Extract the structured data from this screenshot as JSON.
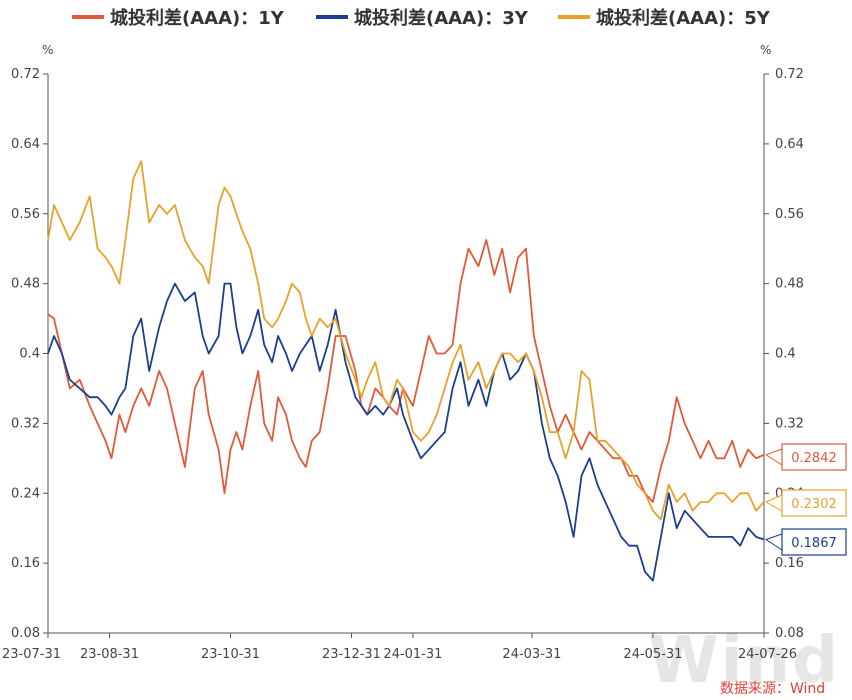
{
  "chart_data": {
    "type": "line",
    "title": "",
    "left_unit": "%",
    "right_unit": "%",
    "y_ticks": [
      "0.72",
      "0.64",
      "0.56",
      "0.48",
      "0.4",
      "0.32",
      "0.24",
      "0.16",
      "0.08"
    ],
    "ylim": [
      0.08,
      0.72
    ],
    "x_ticks": [
      "23-07-31",
      "23-08-31",
      "23-10-31",
      "23-12-31",
      "24-01-31",
      "24-03-31",
      "24-05-31",
      "24-07-26"
    ],
    "x_start": "2023-07-31",
    "x_end": "2024-07-26",
    "grid": false,
    "legend_position": "top",
    "series": [
      {
        "name": "城投利差(AAA)：1Y",
        "color": "#e05a3a",
        "end_label": "0.2842",
        "points": [
          [
            "2023-07-31",
            0.445
          ],
          [
            "2023-08-03",
            0.44
          ],
          [
            "2023-08-07",
            0.4
          ],
          [
            "2023-08-11",
            0.36
          ],
          [
            "2023-08-16",
            0.37
          ],
          [
            "2023-08-21",
            0.34
          ],
          [
            "2023-08-25",
            0.32
          ],
          [
            "2023-08-29",
            0.3
          ],
          [
            "2023-09-01",
            0.28
          ],
          [
            "2023-09-05",
            0.33
          ],
          [
            "2023-09-08",
            0.31
          ],
          [
            "2023-09-12",
            0.34
          ],
          [
            "2023-09-16",
            0.36
          ],
          [
            "2023-09-20",
            0.34
          ],
          [
            "2023-09-25",
            0.38
          ],
          [
            "2023-09-29",
            0.36
          ],
          [
            "2023-10-03",
            0.32
          ],
          [
            "2023-10-08",
            0.27
          ],
          [
            "2023-10-13",
            0.36
          ],
          [
            "2023-10-17",
            0.38
          ],
          [
            "2023-10-20",
            0.33
          ],
          [
            "2023-10-25",
            0.29
          ],
          [
            "2023-10-28",
            0.24
          ],
          [
            "2023-10-31",
            0.29
          ],
          [
            "2023-11-03",
            0.31
          ],
          [
            "2023-11-06",
            0.29
          ],
          [
            "2023-11-10",
            0.34
          ],
          [
            "2023-11-14",
            0.38
          ],
          [
            "2023-11-17",
            0.32
          ],
          [
            "2023-11-21",
            0.3
          ],
          [
            "2023-11-24",
            0.35
          ],
          [
            "2023-11-28",
            0.33
          ],
          [
            "2023-12-01",
            0.3
          ],
          [
            "2023-12-05",
            0.28
          ],
          [
            "2023-12-08",
            0.27
          ],
          [
            "2023-12-11",
            0.3
          ],
          [
            "2023-12-15",
            0.31
          ],
          [
            "2023-12-19",
            0.36
          ],
          [
            "2023-12-23",
            0.42
          ],
          [
            "2023-12-28",
            0.42
          ],
          [
            "2024-01-02",
            0.38
          ],
          [
            "2024-01-05",
            0.34
          ],
          [
            "2024-01-08",
            0.33
          ],
          [
            "2024-01-12",
            0.36
          ],
          [
            "2024-01-16",
            0.35
          ],
          [
            "2024-01-19",
            0.34
          ],
          [
            "2024-01-23",
            0.33
          ],
          [
            "2024-01-26",
            0.36
          ],
          [
            "2024-01-31",
            0.34
          ],
          [
            "2024-02-04",
            0.38
          ],
          [
            "2024-02-08",
            0.42
          ],
          [
            "2024-02-12",
            0.4
          ],
          [
            "2024-02-16",
            0.4
          ],
          [
            "2024-02-20",
            0.41
          ],
          [
            "2024-02-24",
            0.48
          ],
          [
            "2024-02-28",
            0.52
          ],
          [
            "2024-03-04",
            0.5
          ],
          [
            "2024-03-08",
            0.53
          ],
          [
            "2024-03-12",
            0.49
          ],
          [
            "2024-03-16",
            0.52
          ],
          [
            "2024-03-20",
            0.47
          ],
          [
            "2024-03-24",
            0.51
          ],
          [
            "2024-03-28",
            0.52
          ],
          [
            "2024-04-01",
            0.42
          ],
          [
            "2024-04-05",
            0.38
          ],
          [
            "2024-04-09",
            0.34
          ],
          [
            "2024-04-13",
            0.31
          ],
          [
            "2024-04-17",
            0.33
          ],
          [
            "2024-04-21",
            0.31
          ],
          [
            "2024-04-25",
            0.29
          ],
          [
            "2024-04-29",
            0.31
          ],
          [
            "2024-05-03",
            0.3
          ],
          [
            "2024-05-07",
            0.29
          ],
          [
            "2024-05-11",
            0.28
          ],
          [
            "2024-05-15",
            0.28
          ],
          [
            "2024-05-19",
            0.26
          ],
          [
            "2024-05-23",
            0.26
          ],
          [
            "2024-05-27",
            0.24
          ],
          [
            "2024-05-31",
            0.23
          ],
          [
            "2024-06-04",
            0.27
          ],
          [
            "2024-06-08",
            0.3
          ],
          [
            "2024-06-12",
            0.35
          ],
          [
            "2024-06-16",
            0.32
          ],
          [
            "2024-06-20",
            0.3
          ],
          [
            "2024-06-24",
            0.28
          ],
          [
            "2024-06-28",
            0.3
          ],
          [
            "2024-07-02",
            0.28
          ],
          [
            "2024-07-06",
            0.28
          ],
          [
            "2024-07-10",
            0.3
          ],
          [
            "2024-07-14",
            0.27
          ],
          [
            "2024-07-18",
            0.29
          ],
          [
            "2024-07-22",
            0.28
          ],
          [
            "2024-07-26",
            0.284
          ]
        ]
      },
      {
        "name": "城投利差(AAA)：3Y",
        "color": "#1a3f8c",
        "end_label": "0.1867",
        "points": [
          [
            "2023-07-31",
            0.4
          ],
          [
            "2023-08-03",
            0.42
          ],
          [
            "2023-08-07",
            0.4
          ],
          [
            "2023-08-11",
            0.37
          ],
          [
            "2023-08-16",
            0.36
          ],
          [
            "2023-08-21",
            0.35
          ],
          [
            "2023-08-25",
            0.35
          ],
          [
            "2023-08-29",
            0.34
          ],
          [
            "2023-09-01",
            0.33
          ],
          [
            "2023-09-05",
            0.35
          ],
          [
            "2023-09-08",
            0.36
          ],
          [
            "2023-09-12",
            0.42
          ],
          [
            "2023-09-16",
            0.44
          ],
          [
            "2023-09-20",
            0.38
          ],
          [
            "2023-09-25",
            0.43
          ],
          [
            "2023-09-29",
            0.46
          ],
          [
            "2023-10-03",
            0.48
          ],
          [
            "2023-10-08",
            0.46
          ],
          [
            "2023-10-13",
            0.47
          ],
          [
            "2023-10-17",
            0.42
          ],
          [
            "2023-10-20",
            0.4
          ],
          [
            "2023-10-25",
            0.42
          ],
          [
            "2023-10-28",
            0.48
          ],
          [
            "2023-10-31",
            0.48
          ],
          [
            "2023-11-03",
            0.43
          ],
          [
            "2023-11-06",
            0.4
          ],
          [
            "2023-11-10",
            0.42
          ],
          [
            "2023-11-14",
            0.45
          ],
          [
            "2023-11-17",
            0.41
          ],
          [
            "2023-11-21",
            0.39
          ],
          [
            "2023-11-24",
            0.42
          ],
          [
            "2023-11-28",
            0.4
          ],
          [
            "2023-12-01",
            0.38
          ],
          [
            "2023-12-05",
            0.4
          ],
          [
            "2023-12-08",
            0.41
          ],
          [
            "2023-12-11",
            0.42
          ],
          [
            "2023-12-15",
            0.38
          ],
          [
            "2023-12-19",
            0.41
          ],
          [
            "2023-12-23",
            0.45
          ],
          [
            "2023-12-28",
            0.39
          ],
          [
            "2024-01-02",
            0.35
          ],
          [
            "2024-01-05",
            0.34
          ],
          [
            "2024-01-08",
            0.33
          ],
          [
            "2024-01-12",
            0.34
          ],
          [
            "2024-01-16",
            0.33
          ],
          [
            "2024-01-19",
            0.34
          ],
          [
            "2024-01-23",
            0.36
          ],
          [
            "2024-01-26",
            0.33
          ],
          [
            "2024-01-31",
            0.3
          ],
          [
            "2024-02-04",
            0.28
          ],
          [
            "2024-02-08",
            0.29
          ],
          [
            "2024-02-12",
            0.3
          ],
          [
            "2024-02-16",
            0.31
          ],
          [
            "2024-02-20",
            0.36
          ],
          [
            "2024-02-24",
            0.39
          ],
          [
            "2024-02-28",
            0.34
          ],
          [
            "2024-03-04",
            0.37
          ],
          [
            "2024-03-08",
            0.34
          ],
          [
            "2024-03-12",
            0.38
          ],
          [
            "2024-03-16",
            0.4
          ],
          [
            "2024-03-20",
            0.37
          ],
          [
            "2024-03-24",
            0.38
          ],
          [
            "2024-03-28",
            0.4
          ],
          [
            "2024-04-01",
            0.38
          ],
          [
            "2024-04-05",
            0.32
          ],
          [
            "2024-04-09",
            0.28
          ],
          [
            "2024-04-13",
            0.26
          ],
          [
            "2024-04-17",
            0.23
          ],
          [
            "2024-04-21",
            0.19
          ],
          [
            "2024-04-25",
            0.26
          ],
          [
            "2024-04-29",
            0.28
          ],
          [
            "2024-05-03",
            0.25
          ],
          [
            "2024-05-07",
            0.23
          ],
          [
            "2024-05-11",
            0.21
          ],
          [
            "2024-05-15",
            0.19
          ],
          [
            "2024-05-19",
            0.18
          ],
          [
            "2024-05-23",
            0.18
          ],
          [
            "2024-05-27",
            0.15
          ],
          [
            "2024-05-31",
            0.14
          ],
          [
            "2024-06-04",
            0.19
          ],
          [
            "2024-06-08",
            0.24
          ],
          [
            "2024-06-12",
            0.2
          ],
          [
            "2024-06-16",
            0.22
          ],
          [
            "2024-06-20",
            0.21
          ],
          [
            "2024-06-24",
            0.2
          ],
          [
            "2024-06-28",
            0.19
          ],
          [
            "2024-07-02",
            0.19
          ],
          [
            "2024-07-06",
            0.19
          ],
          [
            "2024-07-10",
            0.19
          ],
          [
            "2024-07-14",
            0.18
          ],
          [
            "2024-07-18",
            0.2
          ],
          [
            "2024-07-22",
            0.19
          ],
          [
            "2024-07-26",
            0.187
          ]
        ]
      },
      {
        "name": "城投利差(AAA)：5Y",
        "color": "#e8a22a",
        "end_label": "0.2302",
        "points": [
          [
            "2023-07-31",
            0.53
          ],
          [
            "2023-08-03",
            0.57
          ],
          [
            "2023-08-07",
            0.55
          ],
          [
            "2023-08-11",
            0.53
          ],
          [
            "2023-08-16",
            0.55
          ],
          [
            "2023-08-21",
            0.58
          ],
          [
            "2023-08-25",
            0.52
          ],
          [
            "2023-08-29",
            0.51
          ],
          [
            "2023-09-01",
            0.5
          ],
          [
            "2023-09-05",
            0.48
          ],
          [
            "2023-09-08",
            0.53
          ],
          [
            "2023-09-12",
            0.6
          ],
          [
            "2023-09-16",
            0.62
          ],
          [
            "2023-09-20",
            0.55
          ],
          [
            "2023-09-25",
            0.57
          ],
          [
            "2023-09-29",
            0.56
          ],
          [
            "2023-10-03",
            0.57
          ],
          [
            "2023-10-08",
            0.53
          ],
          [
            "2023-10-13",
            0.51
          ],
          [
            "2023-10-17",
            0.5
          ],
          [
            "2023-10-20",
            0.48
          ],
          [
            "2023-10-25",
            0.57
          ],
          [
            "2023-10-28",
            0.59
          ],
          [
            "2023-10-31",
            0.58
          ],
          [
            "2023-11-03",
            0.56
          ],
          [
            "2023-11-06",
            0.54
          ],
          [
            "2023-11-10",
            0.52
          ],
          [
            "2023-11-14",
            0.48
          ],
          [
            "2023-11-17",
            0.44
          ],
          [
            "2023-11-21",
            0.43
          ],
          [
            "2023-11-24",
            0.44
          ],
          [
            "2023-11-28",
            0.46
          ],
          [
            "2023-12-01",
            0.48
          ],
          [
            "2023-12-05",
            0.47
          ],
          [
            "2023-12-08",
            0.44
          ],
          [
            "2023-12-11",
            0.42
          ],
          [
            "2023-12-15",
            0.44
          ],
          [
            "2023-12-19",
            0.43
          ],
          [
            "2023-12-23",
            0.44
          ],
          [
            "2023-12-28",
            0.4
          ],
          [
            "2024-01-02",
            0.37
          ],
          [
            "2024-01-05",
            0.35
          ],
          [
            "2024-01-08",
            0.37
          ],
          [
            "2024-01-12",
            0.39
          ],
          [
            "2024-01-16",
            0.35
          ],
          [
            "2024-01-19",
            0.34
          ],
          [
            "2024-01-23",
            0.37
          ],
          [
            "2024-01-26",
            0.36
          ],
          [
            "2024-01-31",
            0.31
          ],
          [
            "2024-02-04",
            0.3
          ],
          [
            "2024-02-08",
            0.31
          ],
          [
            "2024-02-12",
            0.33
          ],
          [
            "2024-02-16",
            0.36
          ],
          [
            "2024-02-20",
            0.39
          ],
          [
            "2024-02-24",
            0.41
          ],
          [
            "2024-02-28",
            0.37
          ],
          [
            "2024-03-04",
            0.39
          ],
          [
            "2024-03-08",
            0.36
          ],
          [
            "2024-03-12",
            0.38
          ],
          [
            "2024-03-16",
            0.4
          ],
          [
            "2024-03-20",
            0.4
          ],
          [
            "2024-03-24",
            0.39
          ],
          [
            "2024-03-28",
            0.4
          ],
          [
            "2024-04-01",
            0.38
          ],
          [
            "2024-04-05",
            0.35
          ],
          [
            "2024-04-09",
            0.31
          ],
          [
            "2024-04-13",
            0.31
          ],
          [
            "2024-04-17",
            0.28
          ],
          [
            "2024-04-21",
            0.31
          ],
          [
            "2024-04-25",
            0.38
          ],
          [
            "2024-04-29",
            0.37
          ],
          [
            "2024-05-03",
            0.3
          ],
          [
            "2024-05-07",
            0.3
          ],
          [
            "2024-05-11",
            0.29
          ],
          [
            "2024-05-15",
            0.28
          ],
          [
            "2024-05-19",
            0.27
          ],
          [
            "2024-05-23",
            0.25
          ],
          [
            "2024-05-27",
            0.24
          ],
          [
            "2024-05-31",
            0.22
          ],
          [
            "2024-06-04",
            0.21
          ],
          [
            "2024-06-08",
            0.25
          ],
          [
            "2024-06-12",
            0.23
          ],
          [
            "2024-06-16",
            0.24
          ],
          [
            "2024-06-20",
            0.22
          ],
          [
            "2024-06-24",
            0.23
          ],
          [
            "2024-06-28",
            0.23
          ],
          [
            "2024-07-02",
            0.24
          ],
          [
            "2024-07-06",
            0.24
          ],
          [
            "2024-07-10",
            0.23
          ],
          [
            "2024-07-14",
            0.24
          ],
          [
            "2024-07-18",
            0.24
          ],
          [
            "2024-07-22",
            0.22
          ],
          [
            "2024-07-26",
            0.23
          ]
        ]
      }
    ],
    "source_text": "数据来源：Wind",
    "watermark": "Wind"
  }
}
